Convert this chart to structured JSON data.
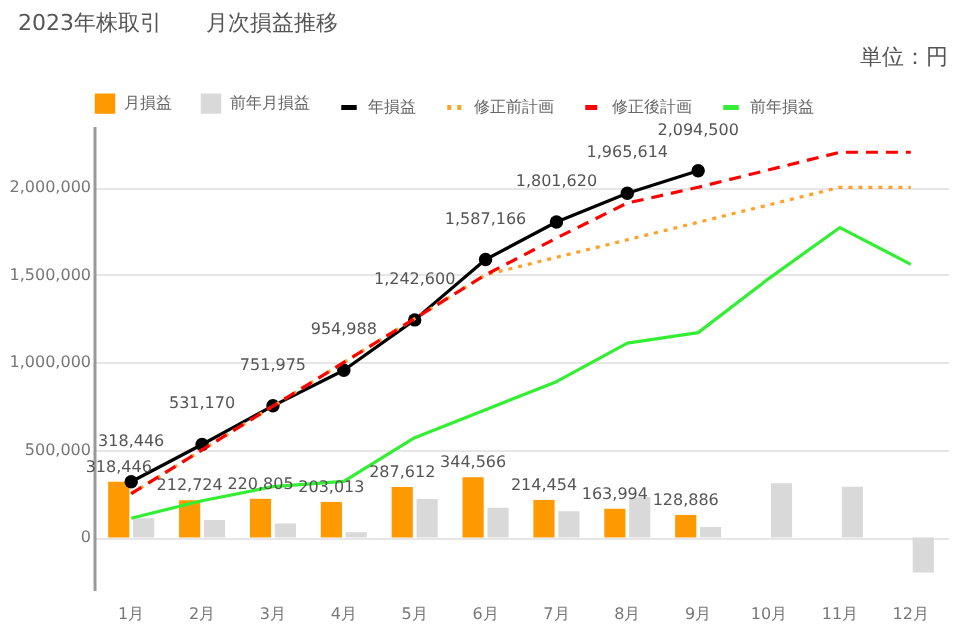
{
  "chart_data": {
    "type": "bar",
    "title": "2023年株取引　　月次損益推移",
    "annotations": [
      "単位：円"
    ],
    "categories": [
      "1月",
      "2月",
      "3月",
      "4月",
      "5月",
      "6月",
      "7月",
      "8月",
      "9月",
      "10月",
      "11月",
      "12月"
    ],
    "series": [
      {
        "name": "月損益",
        "color": "#ff9900",
        "values": [
          318446,
          212724,
          220805,
          203013,
          287612,
          344566,
          214454,
          163994,
          128886,
          null,
          null,
          null
        ],
        "value_labels": [
          "318,446",
          "212,724",
          "220,805",
          "203,013",
          "287,612",
          "344,566",
          "214,454",
          "163,994",
          "128,886",
          null,
          null,
          null
        ]
      },
      {
        "name": "前年月損益",
        "color": "#d9d9d9",
        "values": [
          110000,
          100000,
          80000,
          30000,
          220000,
          170000,
          150000,
          230000,
          60000,
          310000,
          290000,
          -200000
        ]
      },
      {
        "name": "年損益",
        "type": "line",
        "color": "#000000",
        "marker": "circle",
        "line_style": "solid",
        "values": [
          318446,
          531170,
          751975,
          954988,
          1242600,
          1587166,
          1801620,
          1965614,
          2094500,
          null,
          null,
          null
        ],
        "value_labels": [
          "318,446",
          "531,170",
          "751,975",
          "954,988",
          "1,242,600",
          "1,587,166",
          "1,801,620",
          "1,965,614",
          "2,094,500",
          null,
          null,
          null
        ]
      },
      {
        "name": "修正前計画",
        "type": "line",
        "color": "#ffa126",
        "line_style": "dotted",
        "values": [
          250000,
          500000,
          750000,
          1000000,
          1250000,
          1500000,
          1600000,
          1700000,
          1800000,
          1900000,
          2000000,
          2000000
        ]
      },
      {
        "name": "修正後計画",
        "type": "line",
        "color": "#ff0000",
        "line_style": "dashed",
        "values": [
          250000,
          500000,
          750000,
          1000000,
          1250000,
          1500000,
          1710000,
          1910000,
          2000000,
          2100000,
          2200000,
          2200000
        ]
      },
      {
        "name": "前年損益",
        "type": "line",
        "color": "#33ee33",
        "line_style": "solid",
        "values": [
          110000,
          210000,
          290000,
          320000,
          570000,
          730000,
          890000,
          1110000,
          1170000,
          1480000,
          1770000,
          1560000
        ]
      }
    ],
    "ylim": [
      -300000,
      2350000
    ],
    "yticks": [
      0,
      {
        "value": 500000,
        "label": "500,000"
      },
      {
        "value": 1000000,
        "label": "1,000,000"
      },
      {
        "value": 1500000,
        "label": "1,500,000"
      },
      {
        "value": 2000000,
        "label": "2,000,000"
      }
    ],
    "grid": "y",
    "legend": "top"
  }
}
